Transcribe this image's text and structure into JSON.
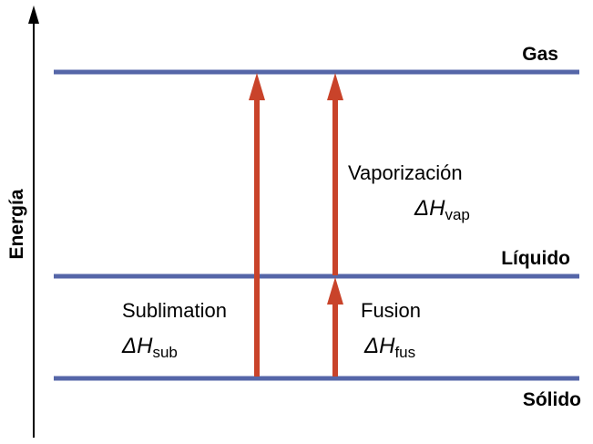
{
  "axis": {
    "label": "Energía"
  },
  "colors": {
    "level": "#5566a8",
    "arrow": "#c9432a",
    "axis": "#000000"
  },
  "levels": {
    "gas": {
      "label": "Gas"
    },
    "liquid": {
      "label": "Líquido"
    },
    "solid": {
      "label": "Sólido"
    }
  },
  "processes": {
    "sublimation": {
      "name": "Sublimation",
      "delta": "ΔH",
      "sub": "sub"
    },
    "vaporization": {
      "name": "Vaporización",
      "delta": "ΔH",
      "sub": "vap"
    },
    "fusion": {
      "name": "Fusion",
      "delta": "ΔH",
      "sub": "fus"
    }
  }
}
